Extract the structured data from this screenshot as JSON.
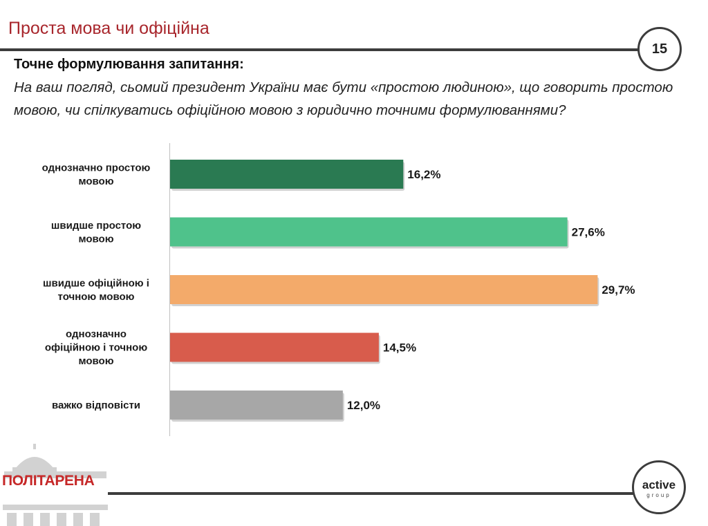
{
  "header": {
    "title": "Проста мова чи офіційна",
    "page_number": "15"
  },
  "question": {
    "heading": "Точне формулювання запитання:",
    "text": "На ваш погляд, сьомий президент України має бути «простою людиною», що говорить простою мовою, чи спілкуватись офіційною мовою з юридично точними формулюваннями?"
  },
  "chart_data": {
    "type": "bar",
    "orientation": "horizontal",
    "categories": [
      [
        "однозначно простою",
        "мовою"
      ],
      [
        "швидше простою",
        "мовою"
      ],
      [
        "швидше офіційною і",
        "точною мовою"
      ],
      [
        "однозначно",
        "офіційною і точною",
        "мовою"
      ],
      [
        "важко відповісти"
      ]
    ],
    "values": [
      16.2,
      27.6,
      29.7,
      14.5,
      12.0
    ],
    "value_labels": [
      "16,2%",
      "27,6%",
      "29,7%",
      "14,5%",
      "12,0%"
    ],
    "colors": [
      "#2a7a52",
      "#4fc28b",
      "#f3aa6a",
      "#d85c4c",
      "#a7a7a7"
    ],
    "xlim": [
      0,
      30
    ],
    "grid": false,
    "legend": "none"
  },
  "footer": {
    "left_logo_text": "ПОЛІТАРЕНА",
    "right_logo_word": "active",
    "right_logo_sub": "group"
  }
}
